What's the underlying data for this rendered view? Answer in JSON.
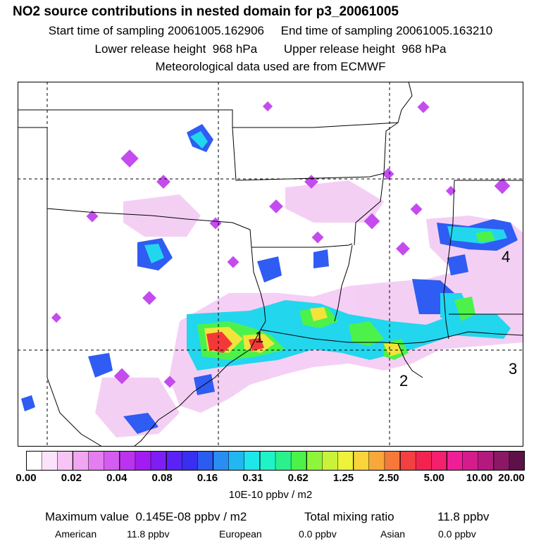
{
  "header": {
    "title": "NO2 source contributions in nested domain for p3_20061005",
    "start_label": "Start time of sampling 20061005.162906",
    "end_label": "End time of sampling 20061005.163210",
    "lower_label": "Lower release height  968 hPa",
    "upper_label": "Upper release height  968 hPa",
    "met_label": "Meteorological data used are from ECMWF"
  },
  "map": {
    "site_labels": [
      "1",
      "2",
      "3",
      "4"
    ]
  },
  "colorbar": {
    "colors": [
      "#ffffff",
      "#fbe3fb",
      "#f7c5f5",
      "#f0a6f0",
      "#e47df0",
      "#d45cf0",
      "#bb33ee",
      "#a21cf2",
      "#7f1ef4",
      "#5a22f6",
      "#3a2ef0",
      "#2b5cf2",
      "#2a8df2",
      "#21b8f2",
      "#1ee6ea",
      "#1ef4c8",
      "#29f28c",
      "#4cf24a",
      "#8ef53a",
      "#c8f33a",
      "#eef23a",
      "#f9d43a",
      "#f8a83a",
      "#f6783a",
      "#f44040",
      "#f2244f",
      "#f3206e",
      "#f01e96",
      "#d41c8c",
      "#b41a7e",
      "#8c1865",
      "#5c1246"
    ],
    "tick_labels": [
      "0.00",
      "0.02",
      "0.04",
      "0.08",
      "0.16",
      "0.31",
      "0.62",
      "1.25",
      "2.50",
      "5.00",
      "10.00",
      "20.00"
    ],
    "units": "10E-10 ppbv / m2"
  },
  "stats": {
    "max_label": "Maximum value  0.145E-08 ppbv / m2",
    "total_label": "Total mixing ratio",
    "total_value": "11.8 ppbv",
    "american_label": "American",
    "american_value": "11.8 ppbv",
    "european_label": "European",
    "european_value": "0.0 ppbv",
    "asian_label": "Asian",
    "asian_value": "0.0 ppbv"
  }
}
